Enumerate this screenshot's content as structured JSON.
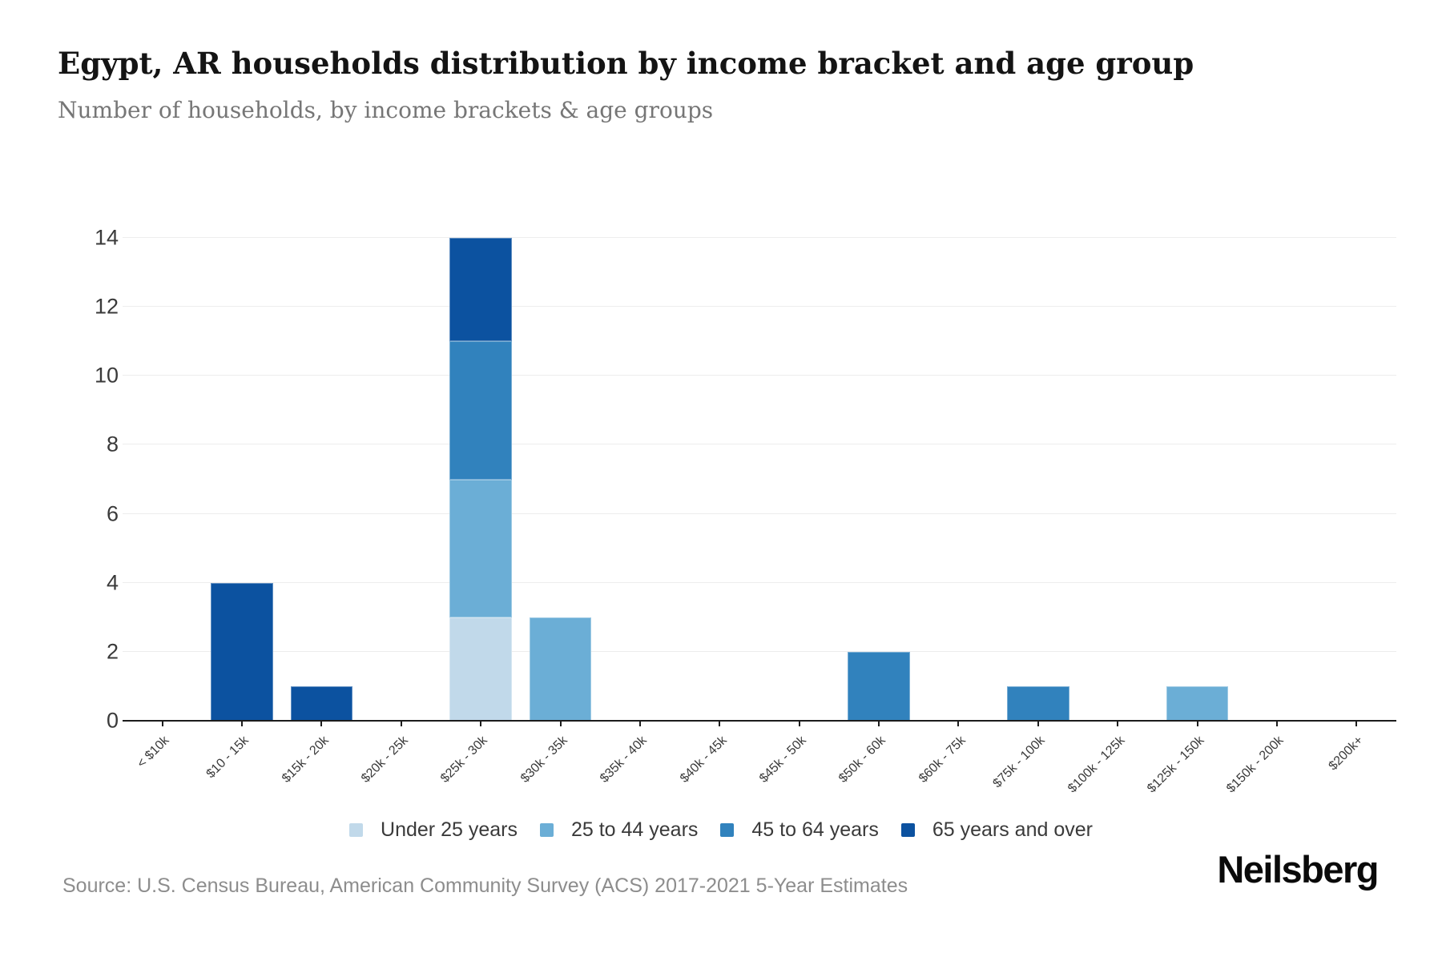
{
  "header": {
    "title": "Egypt, AR households distribution by income bracket and age group",
    "subtitle": "Number of households, by income brackets & age groups"
  },
  "footer": {
    "source": "Source: U.S. Census Bureau, American Community Survey (ACS) 2017-2021 5-Year Estimates",
    "brand": "Neilsberg"
  },
  "colors": {
    "under_25": "#c1d9ea",
    "25_to_44": "#6baed6",
    "45_to_64": "#3182bd",
    "65_and_over": "#0c52a0",
    "gridline": "#ededed",
    "axis": "#1c1c1c"
  },
  "chart_data": {
    "type": "bar",
    "stacked": true,
    "title": "Egypt, AR households distribution by income bracket and age group",
    "xlabel": "",
    "ylabel": "",
    "categories": [
      "< $10k",
      "$10 - 15k",
      "$15k - 20k",
      "$20k - 25k",
      "$25k - 30k",
      "$30k - 35k",
      "$35k - 40k",
      "$40k - 45k",
      "$45k - 50k",
      "$50k - 60k",
      "$60k - 75k",
      "$75k - 100k",
      "$100k - 125k",
      "$125k - 150k",
      "$150k - 200k",
      "$200k+"
    ],
    "series": [
      {
        "name": "Under 25 years",
        "color": "#c1d9ea",
        "values": [
          0,
          0,
          0,
          0,
          3,
          0,
          0,
          0,
          0,
          0,
          0,
          0,
          0,
          0,
          0,
          0
        ]
      },
      {
        "name": "25 to 44 years",
        "color": "#6baed6",
        "values": [
          0,
          0,
          0,
          0,
          4,
          3,
          0,
          0,
          0,
          0,
          0,
          0,
          0,
          1,
          0,
          0
        ]
      },
      {
        "name": "45 to 64 years",
        "color": "#3182bd",
        "values": [
          0,
          0,
          0,
          0,
          4,
          0,
          0,
          0,
          0,
          2,
          0,
          1,
          0,
          0,
          0,
          0
        ]
      },
      {
        "name": "65 years and over",
        "color": "#0c52a0",
        "values": [
          0,
          4,
          1,
          0,
          3,
          0,
          0,
          0,
          0,
          0,
          0,
          0,
          0,
          0,
          0,
          0
        ]
      }
    ],
    "ylim": [
      0,
      14
    ],
    "yticks": [
      0,
      2,
      4,
      6,
      8,
      10,
      12,
      14
    ],
    "grid": true,
    "legend_position": "bottom"
  }
}
